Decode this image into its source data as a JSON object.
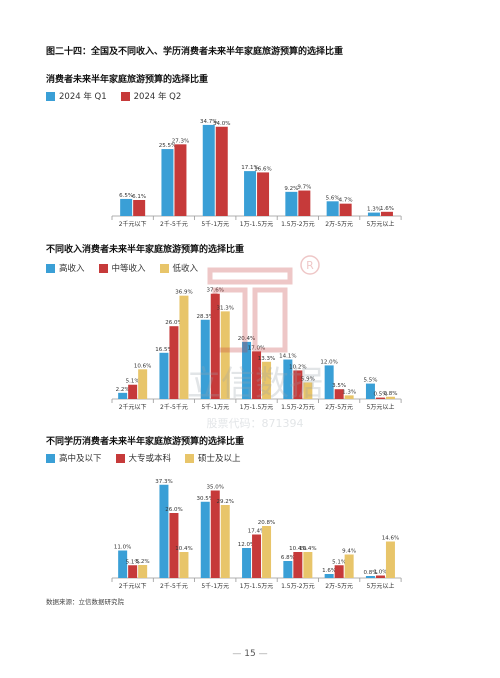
{
  "figure_title": "图二十四：全国及不同收入、学历消费者未来半年家庭旅游预算的选择比重",
  "colors": {
    "blue": "#3a9fd6",
    "red": "#c63a3a",
    "gold": "#e8c56a"
  },
  "chart_data": [
    {
      "type": "bar",
      "title": "消费者未来半年家庭旅游预算的选择比重",
      "categories": [
        "2千元以下",
        "2千-5千元",
        "5千-1万元",
        "1万-1.5万元",
        "1.5万-2万元",
        "2万-5万元",
        "5万元以上"
      ],
      "series": [
        {
          "name": "2024 年 Q1",
          "color": "#3a9fd6",
          "values": [
            6.5,
            25.5,
            34.7,
            17.1,
            9.2,
            5.6,
            1.3
          ],
          "labels": [
            "6.5%",
            "25.5%",
            "34.7%",
            "17.1%",
            "9.2%",
            "5.6%",
            "1.3%"
          ]
        },
        {
          "name": "2024 年 Q2",
          "color": "#c63a3a",
          "values": [
            6.1,
            27.3,
            34.0,
            16.6,
            9.7,
            4.7,
            1.6
          ],
          "labels": [
            "6.1%",
            "27.3%",
            "34.0%",
            "16.6%",
            "9.7%",
            "4.7%",
            "1.6%"
          ]
        }
      ],
      "ylim": [
        0,
        40
      ]
    },
    {
      "type": "bar",
      "title": "不同收入消费者未来半年家庭旅游预算的选择比重",
      "categories": [
        "2千元以下",
        "2千-5千元",
        "5千-1万元",
        "1万-1.5万元",
        "1.5万-2万元",
        "2万-5万元",
        "5万元以上"
      ],
      "series": [
        {
          "name": "高收入",
          "color": "#3a9fd6",
          "values": [
            2.2,
            16.5,
            28.3,
            20.4,
            14.1,
            12.0,
            5.5
          ],
          "labels": [
            "2.2%",
            "16.5%",
            "28.3%",
            "20.4%",
            "14.1%",
            "12.0%",
            "5.5%"
          ]
        },
        {
          "name": "中等收入",
          "color": "#c63a3a",
          "values": [
            5.1,
            26.0,
            37.6,
            17.0,
            10.2,
            3.5,
            0.5
          ],
          "labels": [
            "5.1%",
            "26.0%",
            "37.6%",
            "17.0%",
            "10.2%",
            "3.5%",
            "0.5%"
          ]
        },
        {
          "name": "低收入",
          "color": "#e8c56a",
          "values": [
            10.6,
            36.9,
            31.3,
            13.3,
            5.9,
            1.3,
            0.8
          ],
          "labels": [
            "10.6%",
            "36.9%",
            "31.3%",
            "13.3%",
            "5.9%",
            "1.3%",
            "0.8%"
          ]
        }
      ],
      "ylim": [
        0,
        40
      ]
    },
    {
      "type": "bar",
      "title": "不同学历消费者未来半年家庭旅游预算的选择比重",
      "categories": [
        "2千元以下",
        "2千-5千元",
        "5千-1万元",
        "1万-1.5万元",
        "1.5万-2万元",
        "2万-5万元",
        "5万元以上"
      ],
      "series": [
        {
          "name": "高中及以下",
          "color": "#3a9fd6",
          "values": [
            11.0,
            37.3,
            30.5,
            12.0,
            6.8,
            1.6,
            0.8
          ],
          "labels": [
            "11.0%",
            "37.3%",
            "30.5%",
            "12.0%",
            "6.8%",
            "1.6%",
            "0.8%"
          ]
        },
        {
          "name": "大专或本科",
          "color": "#c63a3a",
          "values": [
            5.1,
            26.0,
            35.0,
            17.4,
            10.4,
            5.1,
            1.0
          ],
          "labels": [
            "5.1%",
            "26.0%",
            "35.0%",
            "17.4%",
            "10.4%",
            "5.1%",
            "1.0%"
          ]
        },
        {
          "name": "硕士及以上",
          "color": "#e8c56a",
          "values": [
            5.2,
            10.4,
            29.2,
            20.8,
            10.4,
            9.4,
            14.6
          ],
          "labels": [
            "5.2%",
            "10.4%",
            "29.2%",
            "20.8%",
            "10.4%",
            "9.4%",
            "14.6%"
          ]
        }
      ],
      "ylim": [
        0,
        40
      ]
    }
  ],
  "source_text": "数据来源：立信数据研究院",
  "page_number": "15",
  "watermark": {
    "text": "立信数据",
    "code": "股票代码：871394"
  }
}
